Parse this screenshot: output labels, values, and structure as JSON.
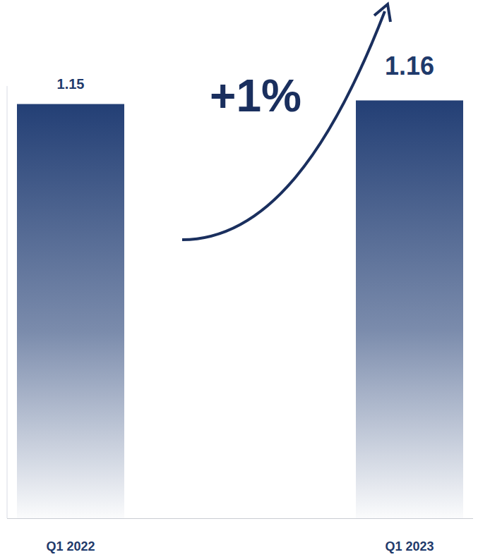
{
  "chart_data": {
    "type": "bar",
    "categories": [
      "Q1 2022",
      "Q1 2023"
    ],
    "values": [
      1.15,
      1.16
    ],
    "color": "#233f75",
    "ylim": [
      0,
      1.2
    ],
    "data_labels": true,
    "tick_labels": "x",
    "grid": false,
    "annotation": "+1%"
  }
}
